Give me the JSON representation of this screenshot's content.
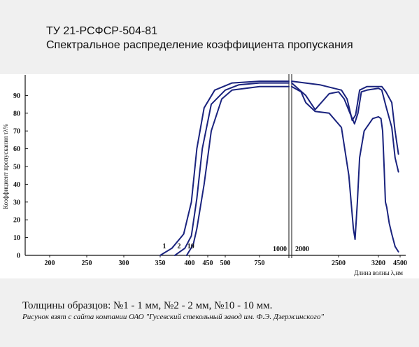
{
  "header": {
    "title_line1": "ТУ 21-РСФСР-504-81",
    "title_line2": "Спектральное распределение коэффициента пропускания"
  },
  "footer": {
    "caption": "Толщины образцов: №1 - 1 мм, №2 - 2 мм, №10 - 10 мм.",
    "credit": "Рисунок взят с сайта компании ОАО \"Гусевский стекольный завод им. Ф.Э. Дзержинского\""
  },
  "chart_data": {
    "type": "line",
    "xlabel": "Длина волны λ,нм",
    "ylabel": "Коэффициент пропускания τλ%",
    "ylim": [
      0,
      100
    ],
    "y_ticks": [
      "0",
      "10",
      "20",
      "30",
      "40",
      "50",
      "60",
      "70",
      "80",
      "90"
    ],
    "x_ticks_left": [
      "200",
      "250",
      "300",
      "350",
      "400",
      "450",
      "500",
      "750"
    ],
    "x_ticks_right": [
      "2500",
      "3200",
      "4500"
    ],
    "break_labels": [
      "1000",
      "2000"
    ],
    "series": [
      {
        "name": "1",
        "points": [
          [
            350,
            0
          ],
          [
            370,
            4
          ],
          [
            390,
            12
          ],
          [
            405,
            30
          ],
          [
            420,
            60
          ],
          [
            440,
            83
          ],
          [
            470,
            93
          ],
          [
            550,
            97
          ],
          [
            750,
            98
          ],
          [
            1000,
            98
          ],
          [
            2000,
            98
          ],
          [
            2300,
            96
          ],
          [
            2450,
            94
          ],
          [
            2550,
            93
          ],
          [
            2650,
            88
          ],
          [
            2740,
            76
          ],
          [
            2800,
            79
          ],
          [
            2870,
            93
          ],
          [
            3000,
            95
          ],
          [
            3200,
            95
          ],
          [
            3400,
            95
          ],
          [
            3650,
            92
          ],
          [
            4000,
            86
          ],
          [
            4200,
            70
          ],
          [
            4400,
            57
          ]
        ]
      },
      {
        "name": "2",
        "points": [
          [
            375,
            0
          ],
          [
            392,
            4
          ],
          [
            405,
            11
          ],
          [
            420,
            32
          ],
          [
            435,
            60
          ],
          [
            460,
            85
          ],
          [
            500,
            93
          ],
          [
            600,
            96
          ],
          [
            750,
            97
          ],
          [
            1000,
            97
          ],
          [
            2000,
            97
          ],
          [
            2150,
            90
          ],
          [
            2250,
            82
          ],
          [
            2400,
            91
          ],
          [
            2500,
            92
          ],
          [
            2600,
            88
          ],
          [
            2700,
            80
          ],
          [
            2780,
            74
          ],
          [
            2840,
            80
          ],
          [
            2900,
            92
          ],
          [
            3000,
            93
          ],
          [
            3200,
            94
          ],
          [
            3400,
            93
          ],
          [
            3650,
            84
          ],
          [
            4000,
            72
          ],
          [
            4200,
            55
          ],
          [
            4400,
            47
          ]
        ]
      },
      {
        "name": "10",
        "points": [
          [
            395,
            0
          ],
          [
            410,
            6
          ],
          [
            420,
            15
          ],
          [
            440,
            40
          ],
          [
            460,
            70
          ],
          [
            490,
            88
          ],
          [
            550,
            93
          ],
          [
            750,
            95
          ],
          [
            1000,
            95
          ],
          [
            2000,
            95
          ],
          [
            2100,
            92
          ],
          [
            2150,
            86
          ],
          [
            2250,
            81
          ],
          [
            2400,
            80
          ],
          [
            2550,
            72
          ],
          [
            2680,
            45
          ],
          [
            2760,
            15
          ],
          [
            2790,
            9
          ],
          [
            2830,
            30
          ],
          [
            2870,
            55
          ],
          [
            2950,
            70
          ],
          [
            3100,
            77
          ],
          [
            3200,
            78
          ],
          [
            3350,
            77
          ],
          [
            3450,
            70
          ],
          [
            3550,
            48
          ],
          [
            3620,
            30
          ],
          [
            3700,
            27
          ],
          [
            3850,
            18
          ],
          [
            4000,
            12
          ],
          [
            4200,
            5
          ],
          [
            4400,
            2
          ]
        ]
      }
    ]
  }
}
